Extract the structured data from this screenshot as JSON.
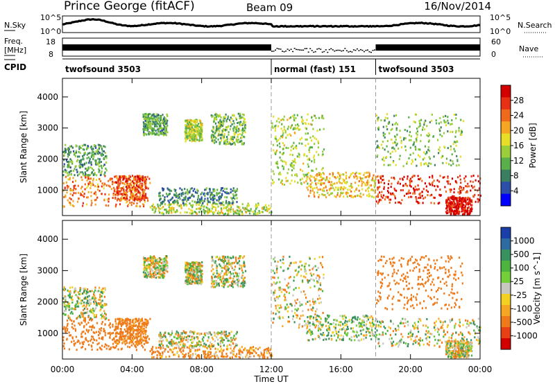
{
  "header": {
    "station": "Prince George (fitACF)",
    "beam": "Beam 09",
    "date": "16/Nov/2014"
  },
  "noise_panel": {
    "left_label": "N.Sky",
    "right_label": "N.Search",
    "left_ticks": [
      "10^5",
      "10^0"
    ],
    "right_ticks": [
      "10^5",
      "10^0"
    ]
  },
  "freq_panel": {
    "left_label": "Freq.",
    "left_unit": "[MHz]",
    "right_label": "Nave",
    "left_ticks": [
      "18",
      "8"
    ],
    "right_ticks": [
      "60",
      "0"
    ]
  },
  "cpid": {
    "label": "CPID",
    "segments": [
      {
        "name": "twofsound 3503",
        "start_h": 0,
        "end_h": 12
      },
      {
        "name": "normal (fast) 151",
        "start_h": 12,
        "end_h": 18
      },
      {
        "name": "twofsound 3503",
        "start_h": 18,
        "end_h": 24
      }
    ]
  },
  "x_axis": {
    "label": "Time UT",
    "ticks": [
      "00:00",
      "04:00",
      "08:00",
      "12:00",
      "16:00",
      "20:00",
      "00:00"
    ],
    "range_h": [
      0,
      24
    ]
  },
  "panels": [
    {
      "y_label": "Slant Range [km]",
      "y_ticks": [
        "1000",
        "2000",
        "3000",
        "4000"
      ],
      "colorbar_label": "Power [dB]",
      "colorbar_ticks": [
        "4",
        "8",
        "12",
        "16",
        "20",
        "24",
        "28"
      ],
      "colors": [
        "#0000ff",
        "#2e4fa8",
        "#3a7f62",
        "#59b04a",
        "#9ace3a",
        "#e8de28",
        "#f5a623",
        "#ef6a1a",
        "#e83015",
        "#d40000"
      ]
    },
    {
      "y_label": "Slant Range [km]",
      "y_ticks": [
        "1000",
        "2000",
        "3000",
        "4000"
      ],
      "colorbar_label": "Velocity  [m s^-1]",
      "colorbar_ticks": [
        "1000",
        "500",
        "100",
        "25",
        "-25",
        "-100",
        "-500",
        "-1000"
      ],
      "colors": [
        "#1b3fa8",
        "#2f6aa0",
        "#3a9160",
        "#4cb43f",
        "#74cf3a",
        "#c8c8c0",
        "#f4d020",
        "#f5a623",
        "#ef7a1a",
        "#e84015",
        "#d40000"
      ]
    }
  ],
  "chart_data": {
    "type": "heatmap",
    "title": "Prince George (fitACF)",
    "xlabel": "Time UT",
    "ylabel": "Slant Range [km]",
    "xlim_hours": [
      0,
      24
    ],
    "ylim_km": [
      180,
      4600
    ],
    "cpid_boundaries_h": [
      12,
      18
    ],
    "power_db_range": [
      0,
      30
    ],
    "velocity_range_ms": [
      -1000,
      1000
    ],
    "scatter_features": [
      {
        "t_h": [
          0,
          5
        ],
        "range_km": [
          500,
          1500
        ],
        "power_db": 22,
        "velocity_ms": -300
      },
      {
        "t_h": [
          0,
          2.5
        ],
        "range_km": [
          1500,
          2500
        ],
        "power_db": 10,
        "velocity_ms": 20
      },
      {
        "t_h": [
          3,
          4.8
        ],
        "range_km": [
          700,
          1500
        ],
        "power_db": 24,
        "velocity_ms": -200
      },
      {
        "t_h": [
          5,
          12
        ],
        "range_km": [
          250,
          600
        ],
        "power_db": 14,
        "velocity_ms": -150
      },
      {
        "t_h": [
          5.5,
          10
        ],
        "range_km": [
          600,
          1100
        ],
        "power_db": 8,
        "velocity_ms": 0
      },
      {
        "t_h": [
          4.6,
          6
        ],
        "range_km": [
          2800,
          3500
        ],
        "power_db": 10,
        "velocity_ms": 0
      },
      {
        "t_h": [
          7,
          8
        ],
        "range_km": [
          2600,
          3300
        ],
        "power_db": 14,
        "velocity_ms": 0
      },
      {
        "t_h": [
          8.5,
          10.5
        ],
        "range_km": [
          2500,
          3500
        ],
        "power_db": 12,
        "velocity_ms": 0
      },
      {
        "t_h": [
          12,
          15
        ],
        "range_km": [
          1200,
          3500
        ],
        "power_db": 14,
        "velocity_ms": 0
      },
      {
        "t_h": [
          14,
          18
        ],
        "range_km": [
          800,
          1600
        ],
        "power_db": 18,
        "velocity_ms": 50
      },
      {
        "t_h": [
          18,
          24
        ],
        "range_km": [
          600,
          1500
        ],
        "power_db": 26,
        "velocity_ms": 0
      },
      {
        "t_h": [
          18,
          23
        ],
        "range_km": [
          1800,
          3500
        ],
        "power_db": 12,
        "velocity_ms": -350
      },
      {
        "t_h": [
          22,
          23.5
        ],
        "range_km": [
          250,
          800
        ],
        "power_db": 28,
        "velocity_ms": 0
      }
    ]
  }
}
